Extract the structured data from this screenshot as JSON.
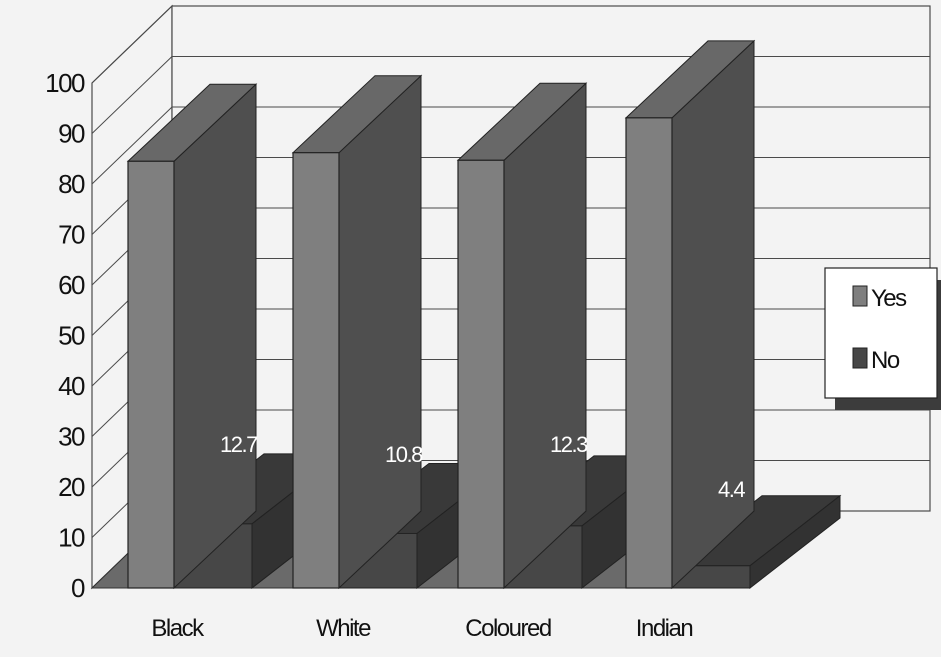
{
  "chart_data": {
    "type": "bar",
    "style": "3d-column",
    "categories": [
      "Black",
      "White",
      "Coloured",
      "Indian"
    ],
    "series": [
      {
        "name": "Yes",
        "values": [
          84.5,
          86.2,
          84.7,
          93.1
        ],
        "color": "#7f7f7f"
      },
      {
        "name": "No",
        "values": [
          12.7,
          10.8,
          12.3,
          4.4
        ],
        "color": "#474747"
      }
    ],
    "data_labels": [
      "12.7",
      "10.8",
      "12.3",
      "4.4"
    ],
    "ylim": [
      0,
      100
    ],
    "yticks": [
      "0",
      "10",
      "20",
      "30",
      "40",
      "50",
      "60",
      "70",
      "80",
      "90",
      "100"
    ],
    "grid": true,
    "legend": {
      "position": "right",
      "entries": [
        "Yes",
        "No"
      ]
    },
    "colors": {
      "background": "#f3f3f3",
      "gridline": "#4a4a4a",
      "floor": "#6a6a6a",
      "legend_shadow": "#3c3c3c"
    }
  }
}
